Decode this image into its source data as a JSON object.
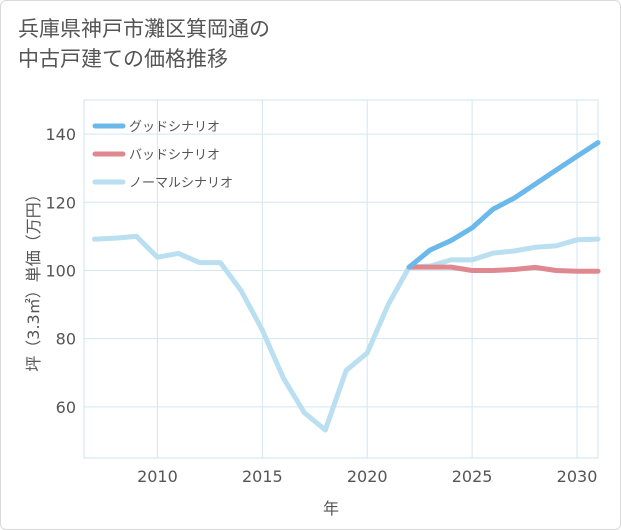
{
  "title_lines": [
    "兵庫県神戸市灘区箕岡通の",
    "中古戸建ての価格推移"
  ],
  "chart_data": {
    "type": "line",
    "title": "兵庫県神戸市灘区箕岡通の中古戸建ての価格推移",
    "xlabel": "年",
    "ylabel": "坪（3.3㎡）単価（万円）",
    "xlim": [
      2006.5,
      2031
    ],
    "ylim": [
      45,
      150
    ],
    "x_ticks": [
      2010,
      2015,
      2020,
      2025,
      2030
    ],
    "y_ticks": [
      60,
      80,
      100,
      120,
      140
    ],
    "grid": true,
    "legend_position": "top-left",
    "series": [
      {
        "name": "グッドシナリオ",
        "color": "#6bb8ea",
        "x": [
          2022,
          2023,
          2024,
          2025,
          2026,
          2027,
          2028,
          2029,
          2030,
          2031
        ],
        "values": [
          101,
          106,
          108.8,
          112.5,
          118,
          121.2,
          125.3,
          129.4,
          133.5,
          137.5
        ]
      },
      {
        "name": "バッドシナリオ",
        "color": "#e0888f",
        "x": [
          2022,
          2023,
          2024,
          2025,
          2026,
          2027,
          2028,
          2029,
          2030,
          2031
        ],
        "values": [
          101,
          101,
          101,
          100,
          100,
          100.3,
          100.9,
          100,
          99.8,
          99.8
        ]
      },
      {
        "name": "ノーマルシナリオ",
        "color": "#b9dff0",
        "x": [
          2007,
          2008,
          2009,
          2010,
          2011,
          2012,
          2013,
          2014,
          2015,
          2016,
          2017,
          2018,
          2019,
          2020,
          2021,
          2022,
          2023,
          2024,
          2025,
          2026,
          2027,
          2028,
          2029,
          2030,
          2031
        ],
        "values": [
          109.2,
          109.5,
          110,
          103.9,
          105,
          102.3,
          102.3,
          94,
          82.5,
          68.5,
          58.3,
          53.2,
          70.7,
          75.8,
          90,
          101,
          101.3,
          103.1,
          103.1,
          105.1,
          105.7,
          106.8,
          107.2,
          109,
          109.2
        ]
      }
    ]
  }
}
